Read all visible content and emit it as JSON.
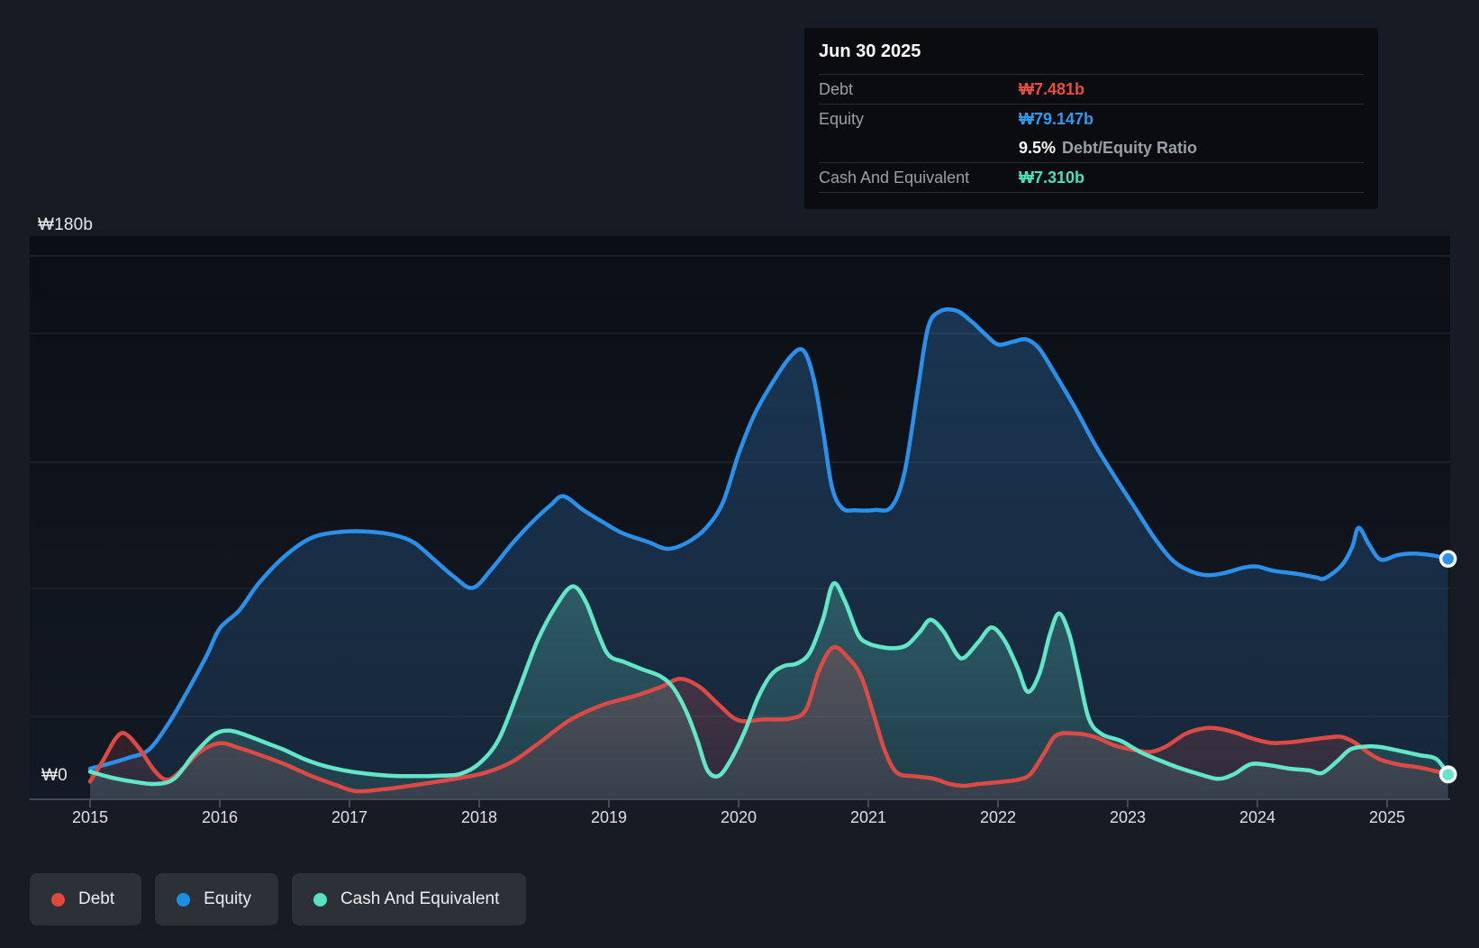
{
  "y_axis": {
    "top_label": "₩180b",
    "zero_label": "₩0"
  },
  "x_axis": {
    "ticks": [
      "2015",
      "2016",
      "2017",
      "2018",
      "2019",
      "2020",
      "2021",
      "2022",
      "2023",
      "2024",
      "2025"
    ]
  },
  "tooltip": {
    "date": "Jun 30 2025",
    "debt_label": "Debt",
    "debt_value": "₩7.481b",
    "equity_label": "Equity",
    "equity_value": "₩79.147b",
    "ratio_value": "9.5%",
    "ratio_label": "Debt/Equity Ratio",
    "cash_label": "Cash And Equivalent",
    "cash_value": "₩7.310b"
  },
  "legend": {
    "items": [
      {
        "label": "Debt",
        "color": "#e1493f"
      },
      {
        "label": "Equity",
        "color": "#1d8fe1"
      },
      {
        "label": "Cash And Equivalent",
        "color": "#58e0c0"
      }
    ]
  },
  "colors": {
    "background": "#171b23",
    "plot_background": "#0c1016",
    "debt_line": "#dc4a46",
    "equity_line": "#2b90e9",
    "cash_line": "#63e6c7",
    "gridline": "#2b313c",
    "axis": "#454b55",
    "text": "#e6e9ec",
    "muted_text": "#9aa0a7"
  },
  "chart_data": {
    "type": "area",
    "title": "",
    "xlabel": "",
    "ylabel": "₩ billions",
    "x_range": [
      2015.0,
      2025.47
    ],
    "ylim": [
      0,
      180
    ],
    "y_tick_labels_shown": [
      "₩180b",
      "₩0"
    ],
    "legend_position": "bottom-left",
    "grid": true,
    "highlighted_point": {
      "date": "Jun 30 2025",
      "debt": 7.481,
      "equity": 79.147,
      "debt_equity_ratio_pct": 9.5,
      "cash_and_equivalent": 7.31
    },
    "series": [
      {
        "name": "Equity",
        "color": "#2b90e9",
        "points": [
          [
            2015.0,
            9.3
          ],
          [
            2015.15,
            11
          ],
          [
            2015.3,
            13
          ],
          [
            2015.45,
            15.5
          ],
          [
            2015.6,
            24
          ],
          [
            2015.75,
            35
          ],
          [
            2015.9,
            47
          ],
          [
            2016.0,
            56
          ],
          [
            2016.15,
            62
          ],
          [
            2016.3,
            71
          ],
          [
            2016.5,
            80
          ],
          [
            2016.7,
            86
          ],
          [
            2016.9,
            88
          ],
          [
            2017.15,
            88.2
          ],
          [
            2017.35,
            87
          ],
          [
            2017.5,
            84.5
          ],
          [
            2017.65,
            79
          ],
          [
            2017.8,
            73.4
          ],
          [
            2017.95,
            69.5
          ],
          [
            2018.1,
            76
          ],
          [
            2018.25,
            84
          ],
          [
            2018.4,
            91
          ],
          [
            2018.55,
            97
          ],
          [
            2018.65,
            100
          ],
          [
            2018.8,
            95.5
          ],
          [
            2018.95,
            91.5
          ],
          [
            2019.1,
            87.8
          ],
          [
            2019.3,
            84.8
          ],
          [
            2019.45,
            82.5
          ],
          [
            2019.6,
            84.5
          ],
          [
            2019.75,
            89.5
          ],
          [
            2019.88,
            98
          ],
          [
            2020.0,
            114
          ],
          [
            2020.12,
            127
          ],
          [
            2020.25,
            137
          ],
          [
            2020.4,
            146.5
          ],
          [
            2020.5,
            148.5
          ],
          [
            2020.58,
            139
          ],
          [
            2020.65,
            122
          ],
          [
            2020.72,
            103
          ],
          [
            2020.8,
            96
          ],
          [
            2020.9,
            95.3
          ],
          [
            2021.05,
            95.4
          ],
          [
            2021.18,
            96.5
          ],
          [
            2021.28,
            108
          ],
          [
            2021.38,
            135
          ],
          [
            2021.46,
            156
          ],
          [
            2021.55,
            161.5
          ],
          [
            2021.68,
            161.8
          ],
          [
            2021.8,
            158
          ],
          [
            2021.9,
            154
          ],
          [
            2022.0,
            150.5
          ],
          [
            2022.12,
            151.5
          ],
          [
            2022.22,
            152.2
          ],
          [
            2022.32,
            149
          ],
          [
            2022.45,
            140
          ],
          [
            2022.6,
            129
          ],
          [
            2022.75,
            117
          ],
          [
            2022.9,
            106.5
          ],
          [
            2023.05,
            96.5
          ],
          [
            2023.2,
            86.5
          ],
          [
            2023.35,
            78.5
          ],
          [
            2023.5,
            74.8
          ],
          [
            2023.62,
            73.7
          ],
          [
            2023.75,
            74.5
          ],
          [
            2023.9,
            76.3
          ],
          [
            2024.0,
            76.6
          ],
          [
            2024.12,
            75.2
          ],
          [
            2024.3,
            74.2
          ],
          [
            2024.45,
            73
          ],
          [
            2024.52,
            72.7
          ],
          [
            2024.65,
            77
          ],
          [
            2024.73,
            83
          ],
          [
            2024.78,
            89.5
          ],
          [
            2024.86,
            84
          ],
          [
            2024.95,
            78.9
          ],
          [
            2025.08,
            80.4
          ],
          [
            2025.2,
            80.9
          ],
          [
            2025.35,
            80.3
          ],
          [
            2025.47,
            79.147
          ]
        ]
      },
      {
        "name": "Debt",
        "color": "#dc4a46",
        "points": [
          [
            2015.0,
            5
          ],
          [
            2015.1,
            12
          ],
          [
            2015.2,
            19.5
          ],
          [
            2015.27,
            21
          ],
          [
            2015.38,
            16
          ],
          [
            2015.5,
            8.5
          ],
          [
            2015.6,
            5.6
          ],
          [
            2015.72,
            9.5
          ],
          [
            2015.85,
            15
          ],
          [
            2016.0,
            17.8
          ],
          [
            2016.15,
            16.2
          ],
          [
            2016.3,
            14
          ],
          [
            2016.5,
            10.8
          ],
          [
            2016.7,
            7
          ],
          [
            2016.9,
            3.8
          ],
          [
            2017.05,
            1.8
          ],
          [
            2017.25,
            2.4
          ],
          [
            2017.45,
            3.5
          ],
          [
            2017.65,
            4.8
          ],
          [
            2017.85,
            6.2
          ],
          [
            2018.05,
            8
          ],
          [
            2018.25,
            11.5
          ],
          [
            2018.45,
            17.5
          ],
          [
            2018.7,
            25.5
          ],
          [
            2018.95,
            30.5
          ],
          [
            2019.2,
            33.5
          ],
          [
            2019.4,
            36.5
          ],
          [
            2019.55,
            39.2
          ],
          [
            2019.7,
            36.5
          ],
          [
            2019.85,
            30.5
          ],
          [
            2020.0,
            25.4
          ],
          [
            2020.2,
            25.7
          ],
          [
            2020.4,
            26
          ],
          [
            2020.52,
            29
          ],
          [
            2020.62,
            42
          ],
          [
            2020.73,
            49.7
          ],
          [
            2020.85,
            46
          ],
          [
            2020.95,
            39.5
          ],
          [
            2021.05,
            26
          ],
          [
            2021.13,
            15
          ],
          [
            2021.22,
            8
          ],
          [
            2021.35,
            6.8
          ],
          [
            2021.5,
            6
          ],
          [
            2021.62,
            4.3
          ],
          [
            2021.73,
            3.6
          ],
          [
            2021.85,
            4.2
          ],
          [
            2022.0,
            4.8
          ],
          [
            2022.15,
            5.6
          ],
          [
            2022.25,
            7.5
          ],
          [
            2022.35,
            14
          ],
          [
            2022.45,
            20.4
          ],
          [
            2022.6,
            21
          ],
          [
            2022.75,
            19.8
          ],
          [
            2022.9,
            17
          ],
          [
            2023.05,
            15.5
          ],
          [
            2023.18,
            14.9
          ],
          [
            2023.3,
            16.8
          ],
          [
            2023.45,
            21
          ],
          [
            2023.6,
            22.8
          ],
          [
            2023.72,
            22.5
          ],
          [
            2023.85,
            21
          ],
          [
            2023.95,
            19.5
          ],
          [
            2024.1,
            17.9
          ],
          [
            2024.25,
            18.1
          ],
          [
            2024.4,
            18.9
          ],
          [
            2024.55,
            19.7
          ],
          [
            2024.65,
            19.9
          ],
          [
            2024.75,
            18
          ],
          [
            2024.85,
            14.8
          ],
          [
            2024.95,
            12.3
          ],
          [
            2025.1,
            10.6
          ],
          [
            2025.25,
            9.7
          ],
          [
            2025.47,
            7.481
          ]
        ]
      },
      {
        "name": "Cash And Equivalent",
        "color": "#63e6c7",
        "points": [
          [
            2015.0,
            8.3
          ],
          [
            2015.15,
            6.5
          ],
          [
            2015.3,
            5.2
          ],
          [
            2015.5,
            4.2
          ],
          [
            2015.65,
            6
          ],
          [
            2015.8,
            14
          ],
          [
            2015.95,
            20.5
          ],
          [
            2016.07,
            22
          ],
          [
            2016.2,
            20.5
          ],
          [
            2016.35,
            18
          ],
          [
            2016.5,
            15.5
          ],
          [
            2016.65,
            12.5
          ],
          [
            2016.8,
            10.3
          ],
          [
            2016.95,
            8.8
          ],
          [
            2017.1,
            7.8
          ],
          [
            2017.3,
            7
          ],
          [
            2017.5,
            6.8
          ],
          [
            2017.7,
            7
          ],
          [
            2017.85,
            7.5
          ],
          [
            2018.0,
            11
          ],
          [
            2018.15,
            19
          ],
          [
            2018.3,
            35
          ],
          [
            2018.45,
            52
          ],
          [
            2018.6,
            64
          ],
          [
            2018.72,
            70
          ],
          [
            2018.82,
            65
          ],
          [
            2018.92,
            54
          ],
          [
            2019.0,
            47
          ],
          [
            2019.12,
            44.8
          ],
          [
            2019.25,
            42.5
          ],
          [
            2019.4,
            40
          ],
          [
            2019.5,
            36
          ],
          [
            2019.6,
            28
          ],
          [
            2019.68,
            19
          ],
          [
            2019.76,
            8.8
          ],
          [
            2019.85,
            7
          ],
          [
            2019.95,
            13
          ],
          [
            2020.05,
            22
          ],
          [
            2020.15,
            33
          ],
          [
            2020.25,
            40.5
          ],
          [
            2020.35,
            43.5
          ],
          [
            2020.45,
            44.3
          ],
          [
            2020.55,
            48
          ],
          [
            2020.65,
            59
          ],
          [
            2020.73,
            70.9
          ],
          [
            2020.82,
            65
          ],
          [
            2020.92,
            54
          ],
          [
            2021.0,
            51
          ],
          [
            2021.1,
            49.8
          ],
          [
            2021.2,
            49.4
          ],
          [
            2021.3,
            50.5
          ],
          [
            2021.4,
            55
          ],
          [
            2021.48,
            58.9
          ],
          [
            2021.58,
            55
          ],
          [
            2021.68,
            47.5
          ],
          [
            2021.74,
            46.3
          ],
          [
            2021.85,
            51.5
          ],
          [
            2021.95,
            56.3
          ],
          [
            2022.05,
            52
          ],
          [
            2022.15,
            43
          ],
          [
            2022.23,
            34.9
          ],
          [
            2022.32,
            41
          ],
          [
            2022.4,
            54
          ],
          [
            2022.47,
            61
          ],
          [
            2022.55,
            54
          ],
          [
            2022.62,
            41
          ],
          [
            2022.7,
            26
          ],
          [
            2022.8,
            20.8
          ],
          [
            2022.95,
            18.5
          ],
          [
            2023.1,
            14.8
          ],
          [
            2023.25,
            12
          ],
          [
            2023.4,
            9.5
          ],
          [
            2023.55,
            7.5
          ],
          [
            2023.7,
            5.9
          ],
          [
            2023.82,
            7.5
          ],
          [
            2023.95,
            10.8
          ],
          [
            2024.1,
            10.4
          ],
          [
            2024.25,
            9.3
          ],
          [
            2024.4,
            8.7
          ],
          [
            2024.5,
            7.9
          ],
          [
            2024.62,
            12
          ],
          [
            2024.72,
            15.8
          ],
          [
            2024.85,
            16.7
          ],
          [
            2024.95,
            16.5
          ],
          [
            2025.1,
            15.2
          ],
          [
            2025.25,
            13.8
          ],
          [
            2025.38,
            12.5
          ],
          [
            2025.47,
            7.31
          ]
        ]
      }
    ]
  }
}
